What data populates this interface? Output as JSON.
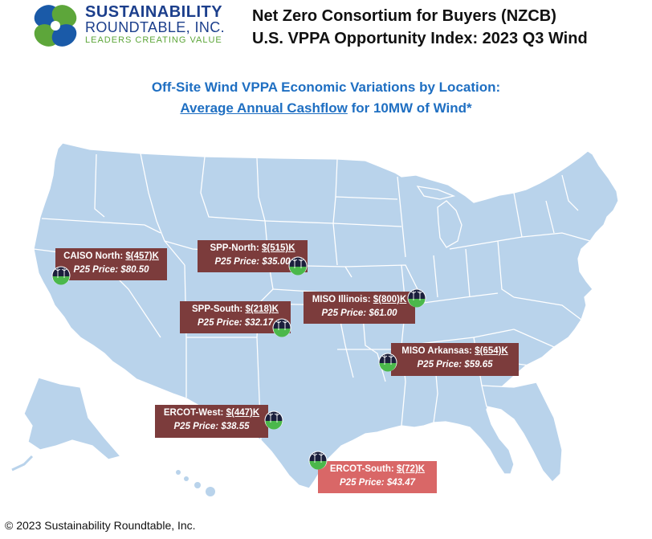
{
  "logo": {
    "line1": "SUSTAINABILITY",
    "line2": "ROUNDTABLE, INC.",
    "tagline": "LEADERS CREATING VALUE"
  },
  "header": {
    "line1": "Net Zero Consortium for Buyers (NZCB)",
    "line2": "U.S. VPPA Opportunity Index: 2023 Q3 Wind"
  },
  "subtitle": {
    "line1": "Off-Site Wind VPPA Economic Variations by Location:",
    "line2_underlined": "Average Annual Cashflow",
    "line2_rest": " for 10MW of Wind*"
  },
  "colors": {
    "land": "#b9d3eb",
    "borders": "#ffffff",
    "label_dark": "#7c3c3c",
    "label_light": "#d96767",
    "title_blue": "#1f6fc2"
  },
  "locations": [
    {
      "name": "CAISO North: ",
      "value": "$(457)K",
      "price": "P25 Price: $80.50",
      "style": "dark"
    },
    {
      "name": "SPP-North: ",
      "value": "$(515)K",
      "price": "P25 Price: $35.00",
      "style": "dark"
    },
    {
      "name": "MISO Illinois: ",
      "value": "$(800)K",
      "price": "P25 Price: $61.00",
      "style": "dark"
    },
    {
      "name": "SPP-South: ",
      "value": "$(218)K",
      "price": "P25 Price: $32.17",
      "style": "dark"
    },
    {
      "name": "MISO Arkansas: ",
      "value": "$(654)K",
      "price": "P25 Price: $59.65",
      "style": "dark"
    },
    {
      "name": "ERCOT-West: ",
      "value": "$(447)K",
      "price": "P25 Price: $38.55",
      "style": "dark"
    },
    {
      "name": "ERCOT-South: ",
      "value": "$(72)K",
      "price": "P25 Price: $43.47",
      "style": "light"
    }
  ],
  "icons": {
    "marker": "wind-turbine-icon",
    "logo": "roundtable-logo-icon"
  },
  "footer": "© 2023 Sustainability Roundtable, Inc."
}
